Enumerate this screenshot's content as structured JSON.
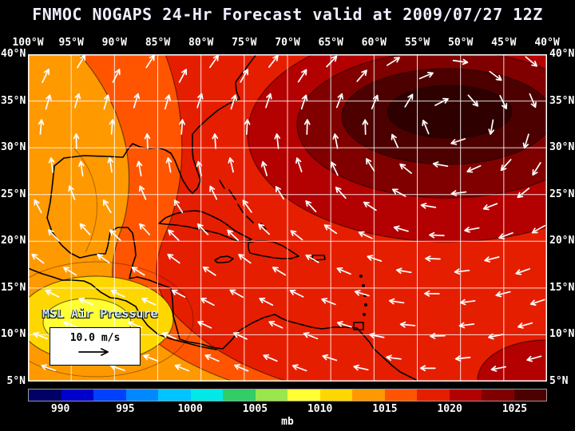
{
  "title": "FNMOC NOGAPS 24-Hr Forecast valid at 2009/07/27 12Z",
  "map": {
    "lon_labels": [
      "100°W",
      "95°W",
      "90°W",
      "85°W",
      "80°W",
      "75°W",
      "70°W",
      "65°W",
      "60°W",
      "55°W",
      "50°W",
      "45°W",
      "40°W"
    ],
    "lat_labels": [
      "40°N",
      "35°N",
      "30°N",
      "25°N",
      "20°N",
      "15°N",
      "10°N",
      "5°N"
    ],
    "field_label": "MSL Air Pressure",
    "vector_legend_label": "10.0 m/s"
  },
  "map_colors": {
    "wind": "#ffffff",
    "coast": "#000000",
    "grid": "#ffffff",
    "frame": "#ffffff",
    "core": "#2e0000",
    "background": "#000000"
  },
  "colorbar": {
    "units": "mb",
    "tick_labels": [
      "990",
      "995",
      "1000",
      "1005",
      "1010",
      "1015",
      "1020",
      "1025"
    ],
    "range_mb": [
      987.5,
      1027.5
    ],
    "segment_mb_step": 2.5,
    "segments": [
      "#000066",
      "#0000cc",
      "#0040ff",
      "#0088ff",
      "#00c4ff",
      "#00e8e8",
      "#33cc66",
      "#99e64d",
      "#ffff33",
      "#ffd700",
      "#ff9900",
      "#ff5500",
      "#e61e00",
      "#b30000",
      "#800000",
      "#4d0000"
    ]
  },
  "chart_data": {
    "type": "heatmap",
    "title": "FNMOC NOGAPS 24-Hr Forecast valid at 2009/07/27 12Z",
    "source": "FNMOC",
    "model": "NOGAPS",
    "forecast_hour": 24,
    "valid_time": "2009/07/27 12Z",
    "variable": "MSL Air Pressure",
    "units": "mb",
    "lon_range": "100°W to 40°W",
    "lat_range": "5°N to 40°N",
    "grid_interval_deg": 5,
    "colorbar_ticks_mb": [
      990,
      995,
      1000,
      1005,
      1010,
      1015,
      1020,
      1025
    ],
    "wind_reference_ms": 10.0,
    "features": [
      {
        "name": "subtropical high",
        "approx_center": "51°W 31°N",
        "approx_pressure_mb": 1026
      },
      {
        "name": "broad 1015-1020 mb ridge",
        "region": "central and western Atlantic, Caribbean"
      },
      {
        "name": "1010-1015 mb lower pressure",
        "region": "Gulf of Mexico, Mexico, Central America"
      },
      {
        "name": "1005-1010 mb trough",
        "approx_center": "92°W 8°N",
        "region": "eastern Pacific off Central America"
      }
    ],
    "wind_pattern": "clockwise anticyclonic flow around the Atlantic high with easterly trade winds across the tropics"
  }
}
